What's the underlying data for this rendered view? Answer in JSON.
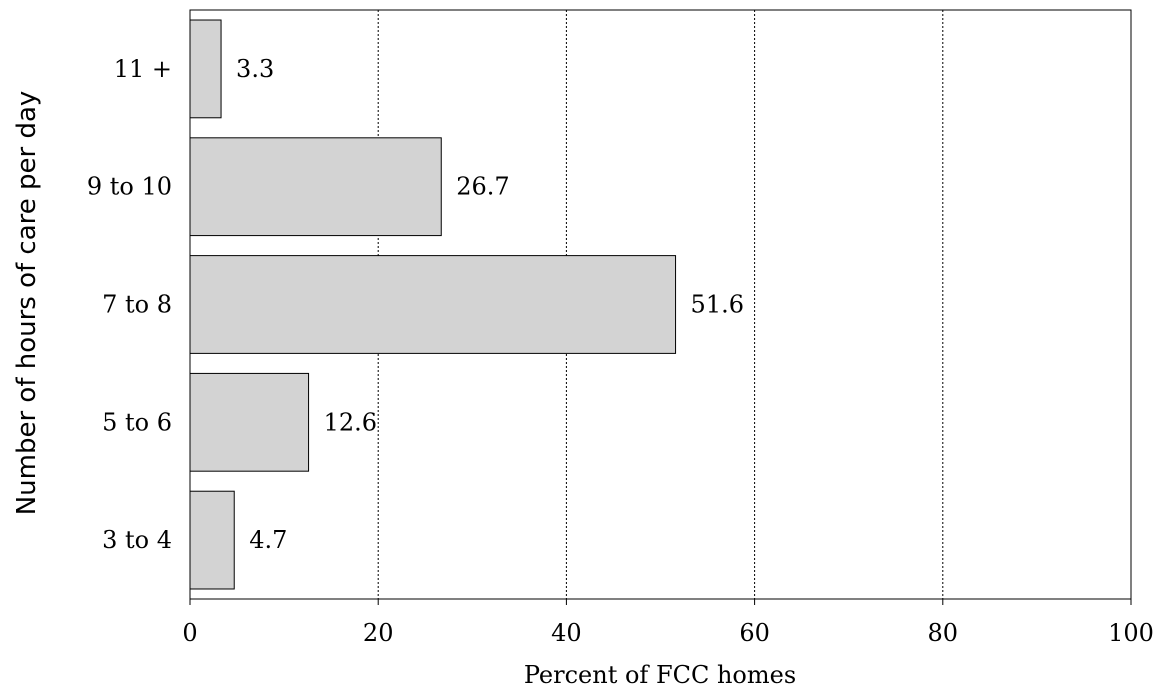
{
  "chart_data": {
    "type": "bar",
    "orientation": "horizontal",
    "categories": [
      "11 +",
      "9 to 10",
      "7 to 8",
      "5 to 6",
      "3 to 4"
    ],
    "values": [
      3.3,
      26.7,
      51.6,
      12.6,
      4.7
    ],
    "data_labels": [
      "3.3",
      "26.7",
      "51.6",
      "12.6",
      "4.7"
    ],
    "title": "",
    "xlabel": "Percent of FCC homes",
    "ylabel": "Number of hours of care per day",
    "xlim": [
      0,
      100
    ],
    "x_ticks": [
      0,
      20,
      40,
      60,
      80,
      100
    ],
    "x_tick_labels": [
      "0",
      "20",
      "40",
      "60",
      "80",
      "100"
    ],
    "grid": "vertical dashed",
    "legend": "none",
    "colors": {
      "bar_fill": "#d3d3d3",
      "bar_stroke": "#000000",
      "grid": "#000000"
    }
  }
}
